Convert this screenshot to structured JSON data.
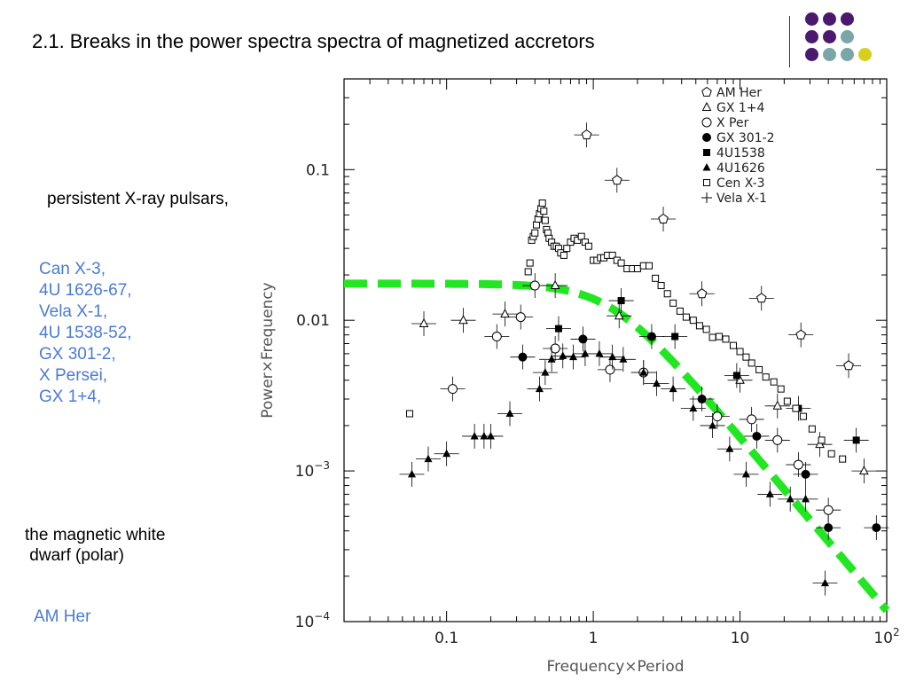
{
  "slide": {
    "title": "2.1. Breaks in the power spectra spectra of magnetized accretors",
    "pulsars_heading": "persistent X-ray pulsars,",
    "pulsars": [
      "Can X-3,",
      "4U 1626-67,",
      "Vela X-1,",
      "4U 1538-52,",
      "GX 301-2,",
      "X Persei,",
      "GX 1+4,"
    ],
    "wd_heading": "the magnetic white\n dwarf (polar)",
    "wd_name": "AM Her"
  },
  "decor": {
    "dot_colors": [
      "#4b1a6e",
      "#4b1a6e",
      "#4b1a6e",
      "#4b1a6e",
      "#4b1a6e",
      "#7aa6a8",
      "#4b1a6e",
      "#7aa6a8",
      "#7aa6a8",
      "#d6cf1e"
    ]
  },
  "chart_data": {
    "type": "scatter",
    "xscale": "log",
    "yscale": "log",
    "xlabel": "Frequency×Period",
    "ylabel": "Power×Frequency",
    "xlim": [
      0.02,
      100
    ],
    "ylim": [
      0.0001,
      0.4
    ],
    "xticks": [
      {
        "value": 0.1,
        "label": "0.1"
      },
      {
        "value": 1,
        "label": "1"
      },
      {
        "value": 10,
        "label": "10"
      },
      {
        "value": 100,
        "label": "10",
        "sup": "2"
      }
    ],
    "yticks": [
      {
        "value": 0.0001,
        "label": "10",
        "sup": "−4"
      },
      {
        "value": 0.001,
        "label": "10",
        "sup": "−3"
      },
      {
        "value": 0.01,
        "label": "0.01"
      },
      {
        "value": 0.1,
        "label": "0.1"
      }
    ],
    "legend_position": "top-right",
    "series": [
      {
        "name": "AM Her",
        "marker": "pentagon",
        "x": [
          0.9,
          1.45,
          3.0,
          5.5,
          14,
          26,
          55
        ],
        "y": [
          0.17,
          0.085,
          0.047,
          0.015,
          0.014,
          0.008,
          0.005
        ]
      },
      {
        "name": "GX 1+4",
        "marker": "triangle-open",
        "x": [
          0.07,
          0.13,
          0.25,
          0.55,
          1.5,
          10,
          18,
          35,
          70
        ],
        "y": [
          0.0095,
          0.01,
          0.011,
          0.017,
          0.0107,
          0.004,
          0.0027,
          0.0015,
          0.001
        ]
      },
      {
        "name": "X Per",
        "marker": "circle-open",
        "x": [
          0.11,
          0.22,
          0.32,
          0.4,
          0.55,
          1.3,
          2.2,
          7,
          12,
          18,
          25,
          40
        ],
        "y": [
          0.0035,
          0.0078,
          0.0105,
          0.017,
          0.0065,
          0.0047,
          0.0045,
          0.0023,
          0.0022,
          0.0016,
          0.0011,
          0.00055
        ]
      },
      {
        "name": "GX 301-2",
        "marker": "circle-filled",
        "x": [
          0.33,
          0.85,
          2.5,
          5.5,
          13,
          28,
          40,
          85
        ],
        "y": [
          0.0057,
          0.0075,
          0.0078,
          0.003,
          0.0017,
          0.00095,
          0.00042,
          0.00042
        ]
      },
      {
        "name": "4U1538",
        "marker": "square-filled",
        "x": [
          0.58,
          1.55,
          3.6,
          9.5,
          25,
          62
        ],
        "y": [
          0.0088,
          0.0135,
          0.0078,
          0.0043,
          0.0026,
          0.0016
        ]
      },
      {
        "name": "4U1626",
        "marker": "triangle-filled",
        "x": [
          0.058,
          0.075,
          0.1,
          0.155,
          0.18,
          0.2,
          0.27,
          0.43,
          0.47,
          0.52,
          0.62,
          0.73,
          0.88,
          1.1,
          1.35,
          1.6,
          2.2,
          2.7,
          3.5,
          4.8,
          6.5,
          8.5,
          11,
          16,
          22,
          28,
          38
        ],
        "y": [
          0.00095,
          0.0012,
          0.0013,
          0.0017,
          0.0017,
          0.0017,
          0.0024,
          0.0035,
          0.0045,
          0.0055,
          0.0058,
          0.0057,
          0.006,
          0.006,
          0.0057,
          0.0055,
          0.0045,
          0.0038,
          0.0035,
          0.0026,
          0.002,
          0.0014,
          0.00095,
          0.0007,
          0.00065,
          0.00065,
          0.00018
        ]
      },
      {
        "name": "Cen X-3",
        "marker": "square-open",
        "x": [
          0.056,
          0.36,
          0.37,
          0.38,
          0.39,
          0.4,
          0.41,
          0.42,
          0.43,
          0.44,
          0.45,
          0.46,
          0.47,
          0.48,
          0.49,
          0.5,
          0.52,
          0.54,
          0.56,
          0.58,
          0.6,
          0.63,
          0.66,
          0.7,
          0.74,
          0.78,
          0.83,
          0.88,
          0.93,
          1.0,
          1.06,
          1.12,
          1.18,
          1.25,
          1.35,
          1.45,
          1.55,
          1.7,
          1.85,
          2.0,
          2.2,
          2.4,
          2.65,
          2.9,
          3.2,
          3.5,
          3.9,
          4.3,
          4.8,
          5.3,
          5.9,
          6.5,
          7.2,
          8.0,
          9.0,
          10,
          11,
          12,
          13.5,
          15,
          17,
          19,
          21,
          24,
          27,
          31,
          36,
          42,
          50
        ],
        "y": [
          0.0024,
          0.021,
          0.024,
          0.034,
          0.036,
          0.038,
          0.043,
          0.047,
          0.051,
          0.055,
          0.06,
          0.053,
          0.046,
          0.04,
          0.038,
          0.035,
          0.033,
          0.031,
          0.031,
          0.03,
          0.028,
          0.027,
          0.03,
          0.033,
          0.035,
          0.034,
          0.036,
          0.033,
          0.031,
          0.025,
          0.025,
          0.026,
          0.026,
          0.027,
          0.027,
          0.025,
          0.024,
          0.022,
          0.022,
          0.022,
          0.023,
          0.023,
          0.019,
          0.017,
          0.015,
          0.013,
          0.0115,
          0.0105,
          0.01,
          0.0092,
          0.0087,
          0.0077,
          0.0078,
          0.0075,
          0.0068,
          0.0062,
          0.0057,
          0.0052,
          0.0047,
          0.0042,
          0.0039,
          0.0035,
          0.0029,
          0.0026,
          0.0023,
          0.0019,
          0.0016,
          0.0013,
          0.0012
        ]
      },
      {
        "name": "Vela X-1",
        "marker": "cross",
        "x": [],
        "y": []
      }
    ],
    "model": {
      "name": "",
      "color": "#22e622",
      "plateau": 0.0175,
      "break": 1.3,
      "slope": -1.15
    }
  }
}
